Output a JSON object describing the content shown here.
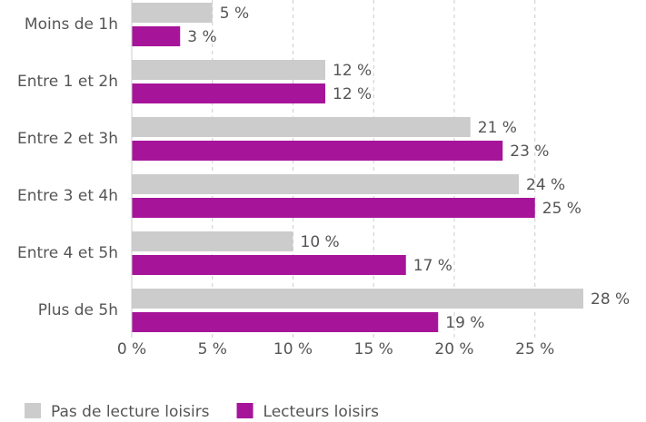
{
  "chart_data": {
    "type": "bar",
    "orientation": "horizontal",
    "categories": [
      "Moins de 1h",
      "Entre 1 et 2h",
      "Entre 2 et 3h",
      "Entre 3 et 4h",
      "Entre 4 et 5h",
      "Plus de 5h"
    ],
    "series": [
      {
        "name": "Pas de lecture loisirs",
        "color": "#cccccc",
        "values": [
          5,
          12,
          21,
          24,
          10,
          28
        ],
        "value_labels": [
          "5 %",
          "12 %",
          "21 %",
          "24 %",
          "10 %",
          "28 %"
        ]
      },
      {
        "name": "Lecteurs loisirs",
        "color": "#a6149a",
        "values": [
          3,
          12,
          23,
          25,
          17,
          19
        ],
        "value_labels": [
          "3 %",
          "12 %",
          "23 %",
          "25 %",
          "17 %",
          "19 %"
        ]
      }
    ],
    "xlim": [
      0,
      28
    ],
    "xticks": [
      {
        "value": 0,
        "label": "0 %"
      },
      {
        "value": 5,
        "label": "5 %"
      },
      {
        "value": 10,
        "label": "10 %"
      },
      {
        "value": 15,
        "label": "15 %"
      },
      {
        "value": 20,
        "label": "20 %"
      },
      {
        "value": 25,
        "label": "25 %"
      }
    ],
    "grid": true,
    "legend": "bottom-left"
  }
}
